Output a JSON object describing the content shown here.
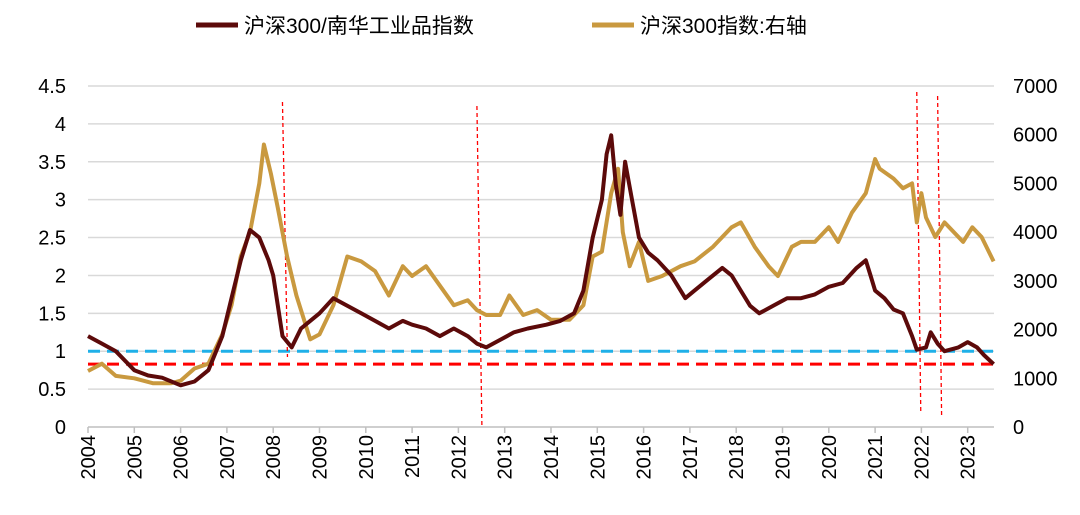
{
  "chart_data": {
    "type": "line",
    "title": "",
    "legend_position": "top",
    "grid": true,
    "x_ticks": [
      "2004",
      "2005",
      "2006",
      "2007",
      "2008",
      "2009",
      "2010",
      "2011",
      "2012",
      "2013",
      "2014",
      "2015",
      "2016",
      "2017",
      "2018",
      "2019",
      "2020",
      "2021",
      "2022",
      "2023"
    ],
    "y_left": {
      "ylim": [
        0,
        4.5
      ],
      "ticks": [
        "0",
        "0.5",
        "1",
        "1.5",
        "2",
        "2.5",
        "3",
        "3.5",
        "4",
        "4.5"
      ]
    },
    "y_right": {
      "ylim": [
        0,
        7000
      ],
      "ticks": [
        "0",
        "1000",
        "2000",
        "3000",
        "4000",
        "5000",
        "6000",
        "7000"
      ]
    },
    "series": [
      {
        "name": "沪深300/南华工业品指数",
        "axis": "left",
        "color": "#5c0a0a",
        "x": [
          2004.0,
          2004.3,
          2004.6,
          2005.0,
          2005.3,
          2005.6,
          2006.0,
          2006.3,
          2006.6,
          2006.9,
          2007.1,
          2007.3,
          2007.5,
          2007.7,
          2007.9,
          2008.0,
          2008.2,
          2008.4,
          2008.6,
          2008.8,
          2009.0,
          2009.3,
          2009.6,
          2009.9,
          2010.2,
          2010.5,
          2010.8,
          2011.0,
          2011.3,
          2011.6,
          2011.9,
          2012.2,
          2012.4,
          2012.6,
          2012.9,
          2013.2,
          2013.5,
          2013.9,
          2014.2,
          2014.5,
          2014.7,
          2014.9,
          2015.1,
          2015.2,
          2015.3,
          2015.4,
          2015.5,
          2015.6,
          2015.75,
          2015.9,
          2016.1,
          2016.3,
          2016.6,
          2016.9,
          2017.1,
          2017.4,
          2017.7,
          2017.9,
          2018.1,
          2018.3,
          2018.5,
          2018.8,
          2019.1,
          2019.4,
          2019.7,
          2020.0,
          2020.3,
          2020.6,
          2020.8,
          2020.9,
          2021.0,
          2021.2,
          2021.4,
          2021.6,
          2021.8,
          2021.9,
          2022.1,
          2022.2,
          2022.35,
          2022.5,
          2022.8,
          2023.0,
          2023.2,
          2023.35,
          2023.56
        ],
        "values": [
          1.2,
          1.1,
          1.0,
          0.75,
          0.68,
          0.65,
          0.55,
          0.6,
          0.75,
          1.2,
          1.7,
          2.2,
          2.6,
          2.5,
          2.2,
          2.0,
          1.2,
          1.05,
          1.3,
          1.4,
          1.5,
          1.7,
          1.6,
          1.5,
          1.4,
          1.3,
          1.4,
          1.35,
          1.3,
          1.2,
          1.3,
          1.2,
          1.1,
          1.05,
          1.15,
          1.25,
          1.3,
          1.35,
          1.4,
          1.5,
          1.8,
          2.5,
          3.0,
          3.6,
          3.85,
          3.2,
          2.8,
          3.5,
          3.0,
          2.5,
          2.3,
          2.2,
          2.0,
          1.7,
          1.8,
          1.95,
          2.1,
          2.0,
          1.8,
          1.6,
          1.5,
          1.6,
          1.7,
          1.7,
          1.75,
          1.85,
          1.9,
          2.1,
          2.2,
          2.0,
          1.8,
          1.7,
          1.55,
          1.5,
          1.2,
          1.02,
          1.05,
          1.25,
          1.1,
          1.0,
          1.05,
          1.12,
          1.05,
          0.95,
          0.83
        ]
      },
      {
        "name": "沪深300指数:右轴",
        "axis": "right",
        "color": "#c9993f",
        "x": [
          2004.0,
          2004.3,
          2004.6,
          2005.0,
          2005.4,
          2005.8,
          2006.0,
          2006.3,
          2006.6,
          2006.9,
          2007.1,
          2007.3,
          2007.5,
          2007.7,
          2007.8,
          2007.95,
          2008.1,
          2008.3,
          2008.5,
          2008.8,
          2009.0,
          2009.3,
          2009.6,
          2009.9,
          2010.2,
          2010.5,
          2010.8,
          2011.0,
          2011.3,
          2011.6,
          2011.9,
          2012.2,
          2012.4,
          2012.6,
          2012.9,
          2013.1,
          2013.4,
          2013.7,
          2014.0,
          2014.4,
          2014.7,
          2014.9,
          2015.1,
          2015.3,
          2015.45,
          2015.55,
          2015.7,
          2015.9,
          2016.1,
          2016.4,
          2016.8,
          2017.1,
          2017.5,
          2017.9,
          2018.1,
          2018.4,
          2018.7,
          2018.9,
          2019.2,
          2019.4,
          2019.7,
          2020.0,
          2020.2,
          2020.5,
          2020.8,
          2021.0,
          2021.1,
          2021.4,
          2021.6,
          2021.8,
          2021.9,
          2022.0,
          2022.1,
          2022.3,
          2022.5,
          2022.7,
          2022.9,
          2023.1,
          2023.3,
          2023.56
        ],
        "values": [
          1150,
          1300,
          1050,
          1000,
          900,
          900,
          950,
          1200,
          1300,
          1900,
          2500,
          3500,
          4000,
          5000,
          5800,
          5200,
          4500,
          3500,
          2700,
          1800,
          1900,
          2500,
          3500,
          3400,
          3200,
          2700,
          3300,
          3100,
          3300,
          2900,
          2500,
          2600,
          2400,
          2300,
          2300,
          2700,
          2300,
          2400,
          2200,
          2200,
          2500,
          3500,
          3600,
          4800,
          5300,
          4000,
          3300,
          3800,
          3000,
          3100,
          3300,
          3400,
          3700,
          4100,
          4200,
          3700,
          3300,
          3100,
          3700,
          3800,
          3800,
          4100,
          3800,
          4400,
          4800,
          5500,
          5300,
          5100,
          4900,
          5000,
          4200,
          4800,
          4300,
          3900,
          4200,
          4000,
          3800,
          4100,
          3900,
          3400
        ]
      }
    ],
    "reference_lines": [
      {
        "type": "horizontal",
        "axis": "left",
        "value": 1.0,
        "color": "#1fb0e8",
        "style": "dashed"
      },
      {
        "type": "horizontal",
        "axis": "left",
        "value": 0.83,
        "color": "#ff0000",
        "style": "dashed"
      },
      {
        "type": "vertical",
        "x": 2008.2,
        "color": "#ff0000",
        "style": "dotted"
      },
      {
        "type": "vertical",
        "x": 2012.4,
        "color": "#ff0000",
        "style": "dotted"
      },
      {
        "type": "vertical",
        "x": 2021.9,
        "color": "#ff0000",
        "style": "dotted"
      },
      {
        "type": "vertical",
        "x": 2022.35,
        "color": "#ff0000",
        "style": "dotted"
      }
    ]
  }
}
